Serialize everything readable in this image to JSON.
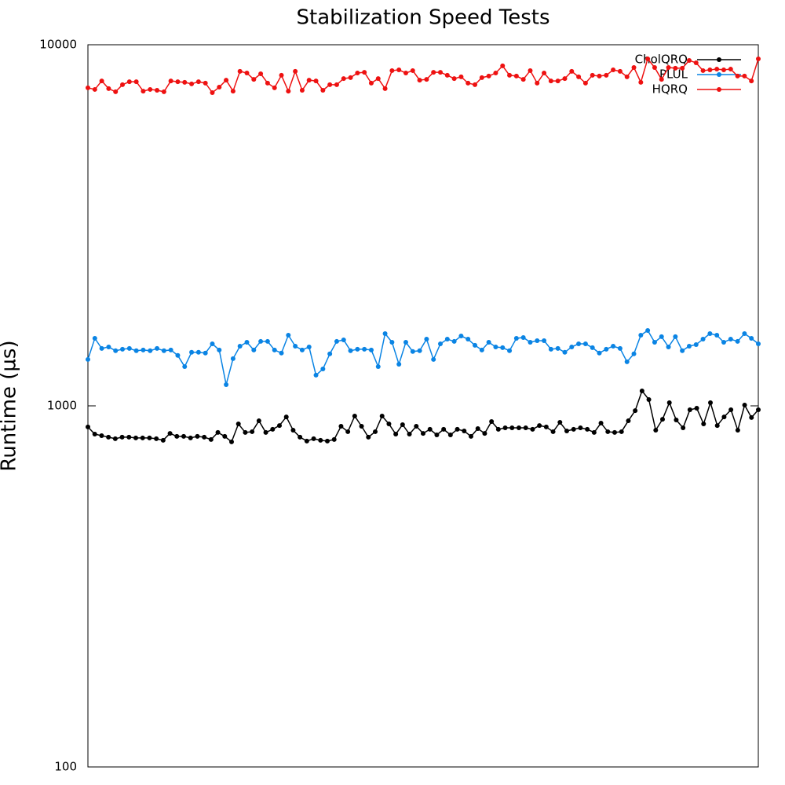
{
  "chart_data": {
    "type": "line",
    "title": "Stabilization Speed Tests",
    "y_label": "Runtime (µs)",
    "log_y": true,
    "ylim": [
      100,
      10000
    ],
    "yticks": [
      100,
      1000,
      10000
    ],
    "legend": "top-right",
    "series": [
      {
        "name": "CholQRQ",
        "color": "#000000",
        "values": [
          874,
          835,
          827,
          819,
          811,
          819,
          819,
          815,
          815,
          815,
          811,
          803,
          839,
          823,
          823,
          815,
          823,
          819,
          807,
          844,
          823,
          795,
          891,
          844,
          848,
          909,
          844,
          861,
          882,
          932,
          856,
          819,
          799,
          811,
          803,
          799,
          807,
          878,
          848,
          937,
          878,
          819,
          848,
          937,
          891,
          835,
          887,
          835,
          878,
          839,
          861,
          831,
          861,
          831,
          861,
          852,
          823,
          865,
          839,
          905,
          861,
          869,
          869,
          869,
          869,
          861,
          882,
          874,
          848,
          900,
          852,
          861,
          869,
          861,
          844,
          896,
          848,
          844,
          848,
          909,
          970,
          1100,
          1041,
          856,
          918,
          1020,
          914,
          869,
          975,
          985,
          891,
          1020,
          882,
          932,
          975,
          856,
          1005,
          928,
          975
        ]
      },
      {
        "name": "PLUL",
        "color": "#0a84e4",
        "values": [
          1344,
          1538,
          1442,
          1456,
          1421,
          1435,
          1442,
          1421,
          1428,
          1421,
          1442,
          1421,
          1428,
          1379,
          1284,
          1407,
          1407,
          1400,
          1485,
          1428,
          1145,
          1351,
          1463,
          1500,
          1428,
          1508,
          1508,
          1428,
          1400,
          1569,
          1463,
          1428,
          1456,
          1216,
          1265,
          1393,
          1508,
          1523,
          1421,
          1435,
          1435,
          1428,
          1284,
          1585,
          1500,
          1304,
          1500,
          1414,
          1421,
          1530,
          1344,
          1485,
          1530,
          1508,
          1561,
          1530,
          1471,
          1428,
          1500,
          1456,
          1449,
          1421,
          1538,
          1546,
          1500,
          1515,
          1515,
          1435,
          1442,
          1407,
          1456,
          1485,
          1485,
          1449,
          1400,
          1435,
          1463,
          1442,
          1324,
          1393,
          1569,
          1617,
          1500,
          1554,
          1456,
          1554,
          1421,
          1463,
          1478,
          1530,
          1585,
          1569,
          1500,
          1530,
          1508,
          1585,
          1538,
          1485
        ]
      },
      {
        "name": "HQRQ",
        "color": "#ee1111",
        "values": [
          7600,
          7520,
          7940,
          7560,
          7410,
          7750,
          7900,
          7900,
          7440,
          7520,
          7480,
          7410,
          7940,
          7900,
          7870,
          7790,
          7900,
          7830,
          7370,
          7630,
          7980,
          7440,
          8440,
          8350,
          8020,
          8310,
          7830,
          7600,
          8230,
          7440,
          8440,
          7480,
          7980,
          7940,
          7480,
          7750,
          7750,
          8060,
          8110,
          8350,
          8390,
          7830,
          8060,
          7560,
          8480,
          8520,
          8350,
          8480,
          7980,
          8020,
          8390,
          8390,
          8230,
          8060,
          8150,
          7830,
          7750,
          8110,
          8190,
          8350,
          8740,
          8230,
          8190,
          8020,
          8480,
          7830,
          8350,
          7940,
          7940,
          8060,
          8440,
          8150,
          7830,
          8230,
          8190,
          8230,
          8520,
          8440,
          8150,
          8650,
          7870,
          9140,
          8650,
          8020,
          8650,
          8610,
          8610,
          9050,
          8910,
          8480,
          8520,
          8560,
          8520,
          8560,
          8190,
          8190,
          7940,
          9140
        ]
      }
    ]
  }
}
